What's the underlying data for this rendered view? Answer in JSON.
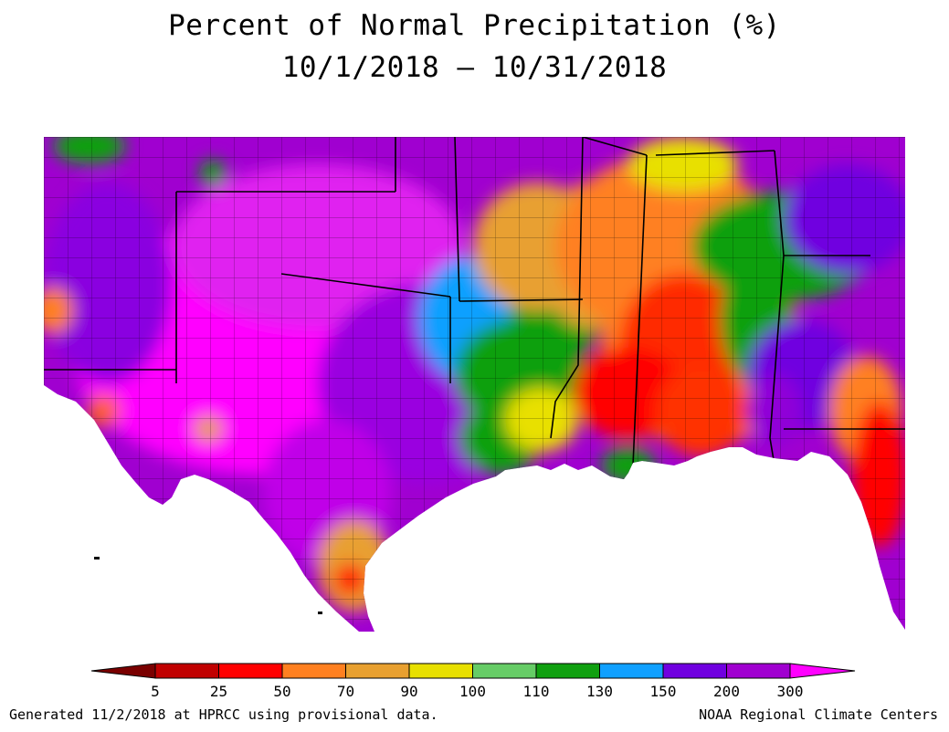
{
  "title": "Percent of Normal Precipitation (%)",
  "date_range": "10/1/2018 – 10/31/2018",
  "footer_left": "Generated 11/2/2018 at HPRCC using provisional data.",
  "footer_right": "NOAA Regional Climate Centers",
  "legend": {
    "labels": [
      "5",
      "25",
      "50",
      "70",
      "90",
      "100",
      "110",
      "130",
      "150",
      "200",
      "300"
    ],
    "colors": [
      "#7a0000",
      "#c00000",
      "#ff0000",
      "#ff8020",
      "#e8a030",
      "#e8e000",
      "#66cc66",
      "#10a010",
      "#10a0ff",
      "#7000e0",
      "#a000d0",
      "#ff00ff"
    ]
  },
  "colors": {
    "magenta": "#ff00ff",
    "purple": "#a000d0",
    "violet": "#7000e0",
    "blue": "#10a0ff",
    "green": "#10a010",
    "lightgreen": "#66cc66",
    "yellow": "#e8e000",
    "tan": "#e8a030",
    "orange": "#ff8020",
    "red": "#ff0000"
  }
}
